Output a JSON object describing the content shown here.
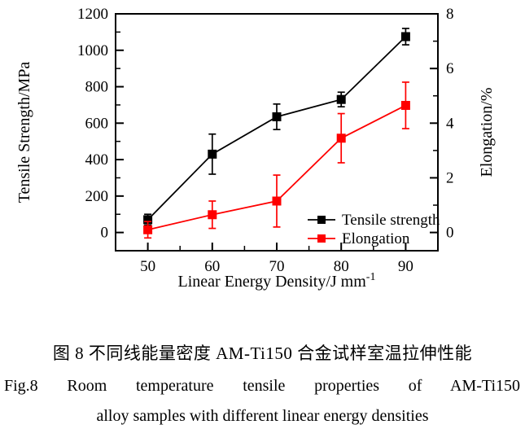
{
  "figure": {
    "caption_zh": "图 8  不同线能量密度 AM-Ti150 合金试样室温拉伸性能",
    "caption_en_line1": "Fig.8  Room temperature tensile properties of AM-Ti150",
    "caption_en_line2": "alloy samples with different linear energy densities"
  },
  "chart_data": {
    "type": "line",
    "title": "",
    "x": [
      50,
      60,
      70,
      80,
      90
    ],
    "xlabel_main": "Linear Energy Density/J mm",
    "xlabel_superscript": "-1",
    "ylabel_left": "Tensile Strength/MPa",
    "ylabel_right": "Elongation/%",
    "xlim": [
      45,
      95
    ],
    "ylim_left": [
      -100,
      1200
    ],
    "ylim_right": [
      -0.667,
      8
    ],
    "xticks": [
      50,
      60,
      70,
      80,
      90
    ],
    "xticks_minor": [
      55,
      65,
      75,
      85
    ],
    "yticks_left": [
      0,
      200,
      400,
      600,
      800,
      1000,
      1200
    ],
    "yticks_left_minor": [
      100,
      300,
      500,
      700,
      900,
      1100
    ],
    "yticks_right": [
      0,
      2,
      4,
      6,
      8
    ],
    "yticks_right_minor": [
      1,
      3,
      5,
      7
    ],
    "grid": false,
    "legend_position": "inside-bottom-right",
    "colors": {
      "tensile": "#000000",
      "elongation": "#fe0000"
    },
    "series": [
      {
        "name": "Tensile strength",
        "axis": "left",
        "color": "#000000",
        "marker": "square",
        "values": [
          70,
          430,
          635,
          730,
          1075
        ],
        "errors": [
          30,
          110,
          70,
          40,
          45
        ]
      },
      {
        "name": "Elongation",
        "axis": "right",
        "color": "#fe0000",
        "marker": "square",
        "values": [
          0.1,
          0.65,
          1.15,
          3.45,
          4.65
        ],
        "errors": [
          0.3,
          0.5,
          0.95,
          0.9,
          0.85
        ]
      }
    ]
  }
}
